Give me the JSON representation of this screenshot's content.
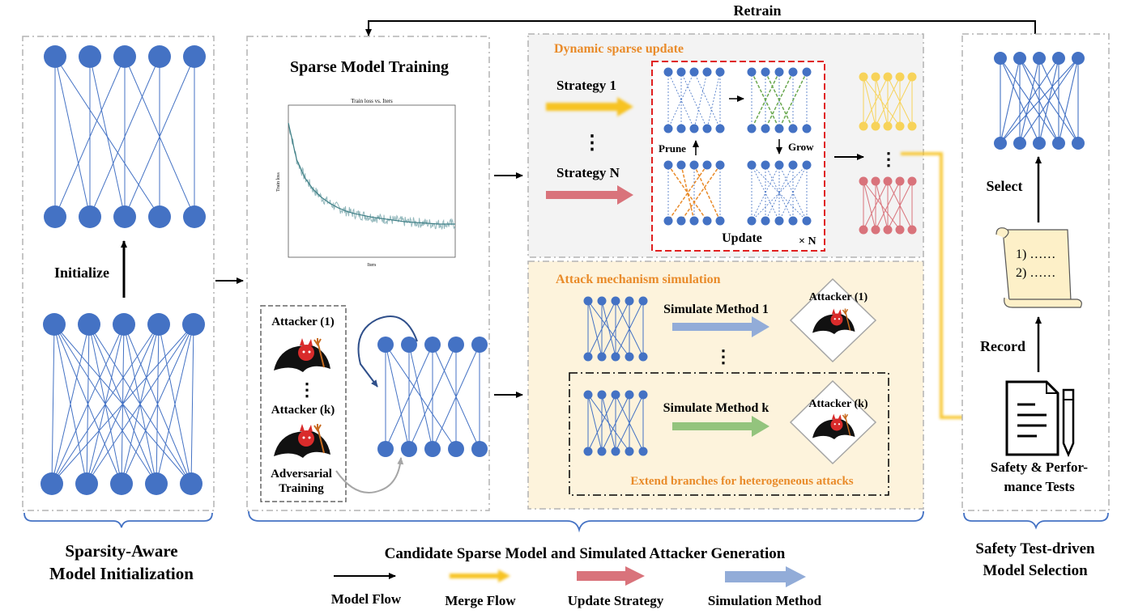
{
  "colors": {
    "node": "#4472c4",
    "edge": "#4472c4",
    "merge": "#f7c324",
    "update": "#d9737b",
    "simulation": "#92acd8",
    "simulation_k": "#93c47d",
    "accent_text": "#e98b2a",
    "red_border": "#e02020",
    "panel_gray": "#f3f3f3",
    "panel_cream": "#fdf3dc"
  },
  "top": {
    "retrain": "Retrain"
  },
  "panel1": {
    "initialize": "Initialize",
    "caption_line1": "Sparsity-Aware",
    "caption_line2": "Model Initialization"
  },
  "panel2": {
    "title": "Sparse Model Training",
    "chart_title": "Train loss  vs. Iters",
    "chart_xlabel": "Iters",
    "chart_ylabel": "Train loss",
    "attacker_1": "Attacker (1)",
    "attacker_k": "Attacker (k)",
    "adv_line1": "Adversarial",
    "adv_line2": "Training"
  },
  "panel3": {
    "title": "Dynamic sparse update",
    "strategy_1": "Strategy 1",
    "strategy_n": "Strategy N",
    "prune": "Prune",
    "grow": "Grow",
    "update": "Update",
    "times_n": "× N"
  },
  "panel4": {
    "title": "Attack mechanism simulation",
    "method_1": "Simulate Method 1",
    "method_k": "Simulate Method k",
    "attacker_1": "Attacker (1)",
    "attacker_k": "Attacker (k)",
    "extend": "Extend branches for heterogeneous attacks"
  },
  "group_caption": "Candidate Sparse Model and Simulated Attacker Generation",
  "panel5": {
    "select": "Select",
    "record": "Record",
    "scroll_line1": "1) ……",
    "scroll_line2": "2) ……",
    "tests_line1": "Safety & Perfor-",
    "tests_line2": "mance  Tests",
    "caption_line1": "Safety Test-driven",
    "caption_line2": "Model Selection"
  },
  "legend": {
    "model_flow": "Model Flow",
    "merge_flow": "Merge Flow",
    "update_strategy": "Update Strategy",
    "simulation_method": "Simulation  Method"
  },
  "chart_data": {
    "type": "line",
    "title": "Train loss  vs. Iters",
    "xlabel": "Iters",
    "ylabel": "Train loss",
    "series": [
      {
        "x": [
          0,
          0.05,
          0.1,
          0.15,
          0.2,
          0.25,
          0.3,
          0.35,
          0.4,
          0.5,
          0.6,
          0.7,
          0.8,
          0.9,
          1.0
        ],
        "values": [
          1.0,
          0.68,
          0.52,
          0.42,
          0.35,
          0.3,
          0.26,
          0.23,
          0.21,
          0.18,
          0.16,
          0.14,
          0.13,
          0.12,
          0.12
        ]
      }
    ]
  }
}
